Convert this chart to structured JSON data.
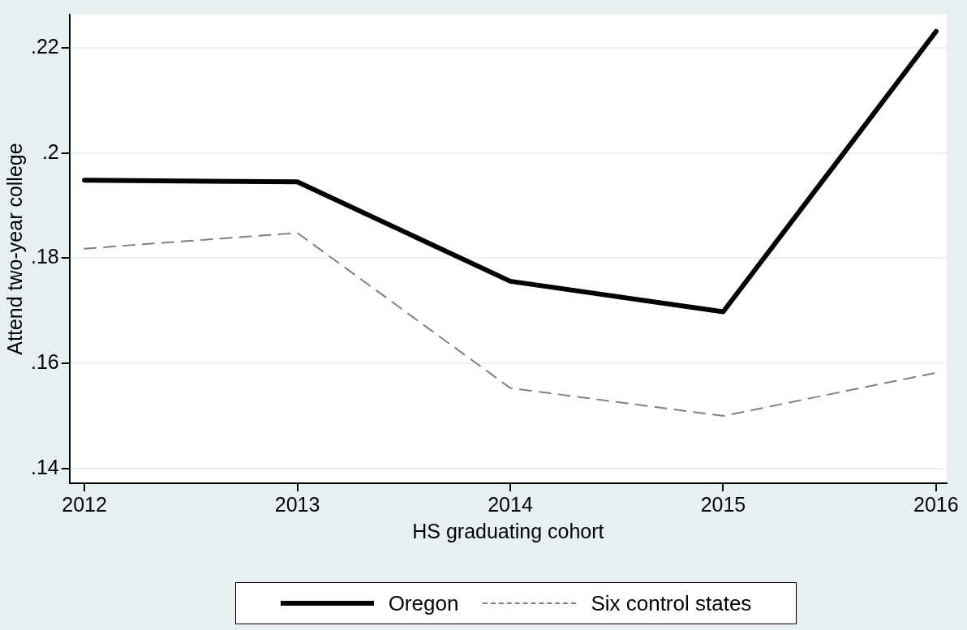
{
  "chart_data": {
    "type": "line",
    "xlabel": "HS graduating cohort",
    "ylabel": "Attend two-year college",
    "x": [
      2012,
      2013,
      2014,
      2015,
      2016
    ],
    "xlim": [
      2011.93,
      2016.05
    ],
    "xticks": [
      2012,
      2013,
      2014,
      2015,
      2016
    ],
    "ylim": [
      0.1372,
      0.2263
    ],
    "yticks": [
      {
        "value": 0.14,
        "label": ".14"
      },
      {
        "value": 0.16,
        "label": ".16"
      },
      {
        "value": 0.18,
        "label": ".18"
      },
      {
        "value": 0.2,
        "label": ".2"
      },
      {
        "value": 0.22,
        "label": ".22"
      }
    ],
    "grid": "y",
    "legend": "bottom",
    "marker": "none",
    "series": [
      {
        "name": "Oregon",
        "color": "#000000",
        "line_style": "solid",
        "values": [
          0.1948,
          0.1945,
          0.1756,
          0.1698,
          0.2231
        ]
      },
      {
        "name": "Six control states",
        "color": "#808080",
        "line_style": "dashed",
        "values": [
          0.1818,
          0.1848,
          0.1553,
          0.15,
          0.1582
        ]
      }
    ]
  }
}
